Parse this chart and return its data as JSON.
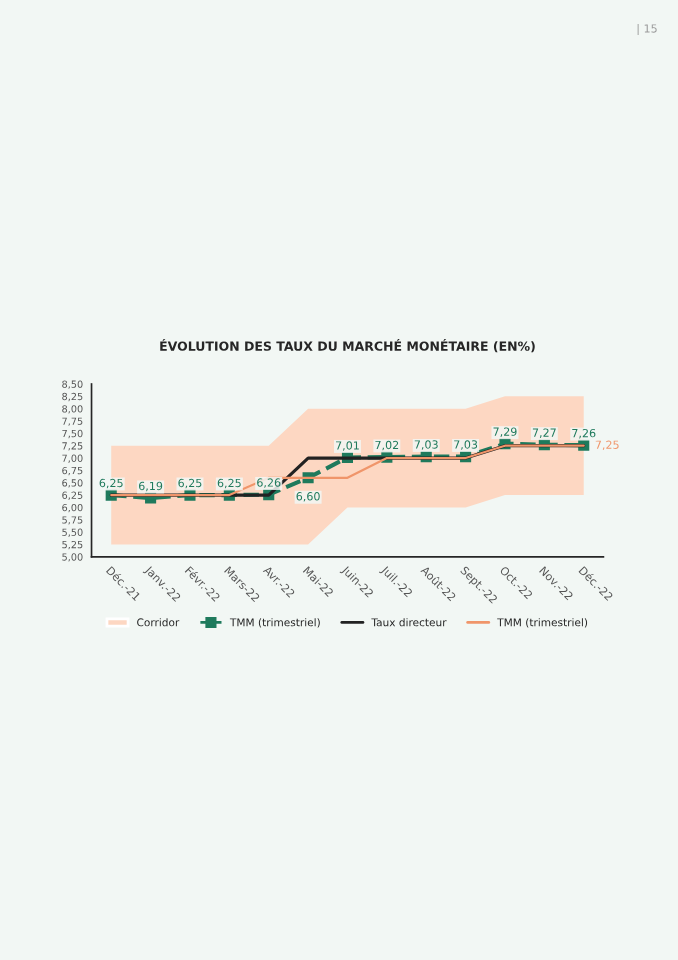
{
  "chart_data": {
    "type": "line",
    "title": "ÉVOLUTION DES TAUX DU MARCHÉ MONÉTAIRE (EN%)",
    "categories": [
      "Déc.-21",
      "Janv.-22",
      "Févr.-22",
      "Mars-22",
      "Avr.-22",
      "Mai-22",
      "Juin-22",
      "Juil.-22",
      "Août-22",
      "Sept.-22",
      "Oct.-22",
      "Nov.-22",
      "Déc.-22"
    ],
    "series": [
      {
        "name": "Corridor",
        "type": "area",
        "color": "#fdd7c2",
        "values": [
          null,
          null,
          null,
          null,
          null,
          null,
          null,
          null,
          null,
          null,
          null,
          null,
          null
        ],
        "lower": [
          5.25,
          5.25,
          5.25,
          5.25,
          5.25,
          5.25,
          6.0,
          6.0,
          6.0,
          6.0,
          6.25,
          6.25,
          6.25
        ],
        "upper": [
          7.25,
          7.25,
          7.25,
          7.25,
          7.25,
          8.0,
          8.0,
          8.0,
          8.0,
          8.0,
          8.25,
          8.25,
          8.25
        ]
      },
      {
        "name": "TMM (trimestriel)",
        "color": "#1f7a5c",
        "marker": "square",
        "line_style": "dashed",
        "values": [
          6.25,
          6.19,
          6.25,
          6.25,
          6.26,
          6.6,
          7.01,
          7.02,
          7.03,
          7.03,
          7.29,
          7.27,
          7.26
        ],
        "value_labels": [
          "6,25",
          "6,19",
          "6,25",
          "6,25",
          "6,26",
          "6,60",
          "7,01",
          "7,02",
          "7,03",
          "7,03",
          "7,29",
          "7,27",
          "7,26"
        ]
      },
      {
        "name": "Taux directeur",
        "color": "#222222",
        "marker": "none",
        "line_style": "solid",
        "values": [
          6.25,
          6.25,
          6.25,
          6.25,
          6.25,
          7.0,
          7.0,
          7.0,
          7.0,
          7.0,
          7.25,
          7.25,
          7.25
        ]
      },
      {
        "name": "TMM (trimestriel)",
        "color": "#f0956a",
        "marker": "none",
        "line_style": "solid",
        "values": [
          6.25,
          6.25,
          6.25,
          6.25,
          6.6,
          6.6,
          6.6,
          7.0,
          7.0,
          7.0,
          7.25,
          7.25,
          7.25
        ],
        "value_labels": [
          null,
          null,
          null,
          null,
          null,
          null,
          null,
          null,
          null,
          null,
          null,
          null,
          "7,25"
        ]
      }
    ],
    "ylim": [
      5.0,
      8.5
    ],
    "yticks": [
      {
        "value": 5.0,
        "label": "5,00"
      },
      {
        "value": 5.25,
        "label": "5,25"
      },
      {
        "value": 5.5,
        "label": "5,50"
      },
      {
        "value": 5.75,
        "label": "5,75"
      },
      {
        "value": 6.0,
        "label": "6,00"
      },
      {
        "value": 6.25,
        "label": "6,25"
      },
      {
        "value": 6.5,
        "label": "6,50"
      },
      {
        "value": 6.75,
        "label": "6,75"
      },
      {
        "value": 7.0,
        "label": "7,00"
      },
      {
        "value": 7.25,
        "label": "7,25"
      },
      {
        "value": 7.5,
        "label": "7,50"
      },
      {
        "value": 7.75,
        "label": "7,75"
      },
      {
        "value": 8.0,
        "label": "8,00"
      },
      {
        "value": 8.25,
        "label": "8,25"
      },
      {
        "value": 8.5,
        "label": "8,50"
      }
    ],
    "grid": false,
    "legend": "bottom",
    "annotations": [
      "| 15"
    ]
  }
}
